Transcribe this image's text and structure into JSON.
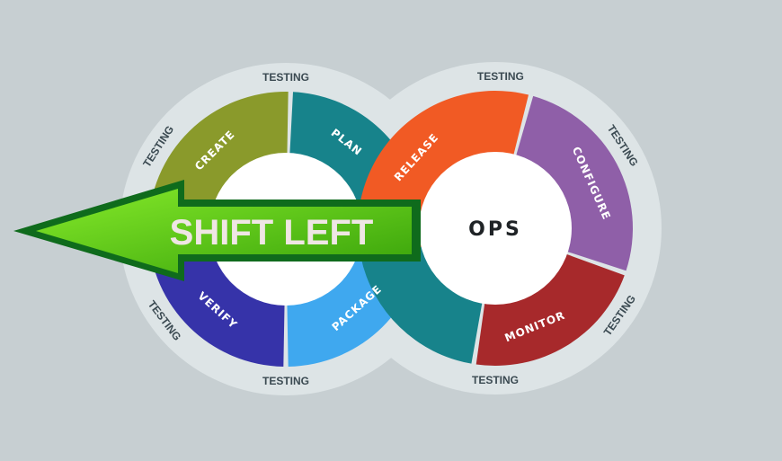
{
  "diagram": {
    "center_label": "OPS",
    "arrow_label": "SHIFT LEFT",
    "ring_label": "TESTING",
    "dev_stages": [
      {
        "label": "CREATE",
        "color": "#8a9a2b"
      },
      {
        "label": "PLAN",
        "color": "#17838b"
      },
      {
        "label": "PACKAGE",
        "color": "#3fa8ef"
      },
      {
        "label": "VERIFY",
        "color": "#3633a9"
      }
    ],
    "ops_stages": [
      {
        "label": "RELEASE",
        "color": "#f15a24"
      },
      {
        "label": "CONFIGURE",
        "color": "#8f5fa8"
      },
      {
        "label": "MONITOR",
        "color": "#a7292b"
      }
    ],
    "colors": {
      "background": "#c7cfd2",
      "outer_ring": "#dde4e6",
      "arrow_fill": "#5fcf1a",
      "arrow_outline": "#0f6b1c",
      "crossover": "#17838b"
    }
  }
}
